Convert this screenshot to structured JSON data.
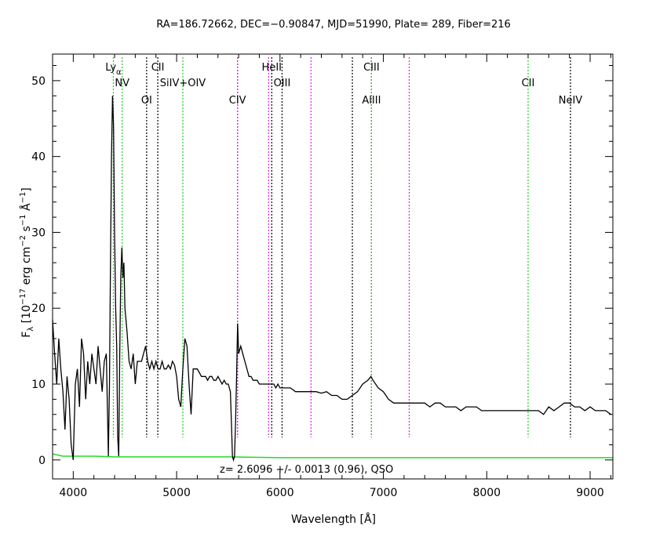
{
  "chart_data": {
    "type": "line",
    "title": "RA=186.72662, DEC=−0.90847, MJD=51990, Plate= 289, Fiber=216",
    "xlabel": "Wavelength [Å]",
    "ylabel": {
      "f": "F",
      "f_sub": "λ",
      "open": " [10",
      "exp1": "−17",
      "mid1": " erg cm",
      "exp2": "−2",
      "mid2": " s",
      "exp3": "−1",
      "mid3": " Å",
      "exp4": "−1",
      "close": "]"
    },
    "xlim": [
      3800,
      9220
    ],
    "ylim": [
      -2.5,
      53.5
    ],
    "xticks": [
      4000,
      5000,
      6000,
      7000,
      8000,
      9000
    ],
    "yticks": [
      0,
      10,
      20,
      30,
      40,
      50
    ],
    "annotation": "z=  2.6096  +/-  0.0013  (0.96),  QSO",
    "colors": {
      "flux": "#000000",
      "error": "#22dd22",
      "green_line": "#22cc22",
      "magenta_line": "#dd22dd",
      "black_line": "#000000"
    },
    "lines": [
      {
        "label": "Ly",
        "sub": "α",
        "x": 4388,
        "color": "green",
        "row": 0
      },
      {
        "label": "NV",
        "x": 4473,
        "color": "green",
        "row": 1
      },
      {
        "label": "OI",
        "x": 4710,
        "color": "black",
        "row": 2
      },
      {
        "label": "CII",
        "x": 4818,
        "color": "black",
        "row": 0
      },
      {
        "label": "SiIV+OIV",
        "x": 5060,
        "color": "green",
        "row": 1
      },
      {
        "label": "CIV",
        "x": 5589,
        "color": "magenta",
        "row": 2
      },
      {
        "label": "HeII",
        "x": 5920,
        "color": "black",
        "row": 0
      },
      {
        "label": "OIII",
        "x": 6020,
        "color": "black",
        "row": 1
      },
      {
        "label": "AlIII",
        "x": 6885,
        "color": "black",
        "row": 2
      },
      {
        "label": "CIII",
        "x": 6885,
        "color": "green",
        "row": 0
      },
      {
        "label": "CII",
        "x": 8400,
        "color": "green",
        "row": 1
      },
      {
        "label": "NeIV",
        "x": 8810,
        "color": "black",
        "row": 2
      }
    ],
    "unlabeled_lines": [
      {
        "x": 5590,
        "color": "magenta"
      },
      {
        "x": 5890,
        "color": "magenta"
      },
      {
        "x": 6300,
        "color": "magenta"
      },
      {
        "x": 6700,
        "color": "black"
      },
      {
        "x": 7250,
        "color": "magenta"
      }
    ],
    "series": [
      {
        "color": "black",
        "points": [
          [
            3800,
            18.5
          ],
          [
            3820,
            14
          ],
          [
            3840,
            10
          ],
          [
            3860,
            16
          ],
          [
            3880,
            12
          ],
          [
            3900,
            9
          ],
          [
            3920,
            4
          ],
          [
            3940,
            11
          ],
          [
            3960,
            8
          ],
          [
            3980,
            2
          ],
          [
            4000,
            0
          ],
          [
            4020,
            10
          ],
          [
            4040,
            12
          ],
          [
            4060,
            7
          ],
          [
            4080,
            16
          ],
          [
            4100,
            14
          ],
          [
            4120,
            8
          ],
          [
            4140,
            13
          ],
          [
            4160,
            10
          ],
          [
            4180,
            14
          ],
          [
            4200,
            12
          ],
          [
            4220,
            10
          ],
          [
            4240,
            15
          ],
          [
            4260,
            12
          ],
          [
            4280,
            9
          ],
          [
            4300,
            13
          ],
          [
            4320,
            14
          ],
          [
            4340,
            0.5
          ],
          [
            4350,
            10
          ],
          [
            4360,
            26
          ],
          [
            4370,
            40
          ],
          [
            4380,
            48
          ],
          [
            4390,
            44
          ],
          [
            4400,
            30
          ],
          [
            4410,
            20
          ],
          [
            4420,
            15
          ],
          [
            4430,
            3
          ],
          [
            4440,
            0.5
          ],
          [
            4450,
            14
          ],
          [
            4460,
            24
          ],
          [
            4470,
            28
          ],
          [
            4480,
            24
          ],
          [
            4490,
            26
          ],
          [
            4500,
            20
          ],
          [
            4520,
            17
          ],
          [
            4540,
            13
          ],
          [
            4560,
            12
          ],
          [
            4580,
            14
          ],
          [
            4600,
            10
          ],
          [
            4620,
            13
          ],
          [
            4640,
            13
          ],
          [
            4660,
            13
          ],
          [
            4680,
            14
          ],
          [
            4700,
            15
          ],
          [
            4720,
            13
          ],
          [
            4740,
            12
          ],
          [
            4760,
            13
          ],
          [
            4780,
            12
          ],
          [
            4800,
            13
          ],
          [
            4820,
            12
          ],
          [
            4840,
            12
          ],
          [
            4860,
            13
          ],
          [
            4880,
            12
          ],
          [
            4900,
            12
          ],
          [
            4920,
            12.5
          ],
          [
            4940,
            12
          ],
          [
            4960,
            13
          ],
          [
            4980,
            12.5
          ],
          [
            5000,
            11
          ],
          [
            5020,
            8
          ],
          [
            5040,
            7
          ],
          [
            5060,
            12
          ],
          [
            5080,
            16
          ],
          [
            5100,
            15
          ],
          [
            5120,
            10
          ],
          [
            5140,
            6
          ],
          [
            5160,
            12
          ],
          [
            5180,
            12
          ],
          [
            5200,
            12
          ],
          [
            5220,
            11.5
          ],
          [
            5240,
            11
          ],
          [
            5260,
            11
          ],
          [
            5280,
            11
          ],
          [
            5300,
            10.5
          ],
          [
            5320,
            11
          ],
          [
            5340,
            11
          ],
          [
            5360,
            10.5
          ],
          [
            5380,
            10.5
          ],
          [
            5400,
            11
          ],
          [
            5420,
            10.5
          ],
          [
            5440,
            10
          ],
          [
            5460,
            10.5
          ],
          [
            5480,
            10
          ],
          [
            5500,
            10
          ],
          [
            5520,
            9
          ],
          [
            5530,
            5
          ],
          [
            5540,
            0.5
          ],
          [
            5550,
            0
          ],
          [
            5560,
            0.5
          ],
          [
            5570,
            5
          ],
          [
            5580,
            11
          ],
          [
            5590,
            18
          ],
          [
            5600,
            14
          ],
          [
            5620,
            15
          ],
          [
            5640,
            14
          ],
          [
            5660,
            13
          ],
          [
            5680,
            12
          ],
          [
            5700,
            11
          ],
          [
            5720,
            11
          ],
          [
            5740,
            10.5
          ],
          [
            5760,
            10.5
          ],
          [
            5780,
            10.5
          ],
          [
            5800,
            10
          ],
          [
            5820,
            10
          ],
          [
            5840,
            10
          ],
          [
            5860,
            10
          ],
          [
            5880,
            10
          ],
          [
            5900,
            10
          ],
          [
            5920,
            10
          ],
          [
            5940,
            10
          ],
          [
            5960,
            9.5
          ],
          [
            5980,
            10
          ],
          [
            6000,
            9.5
          ],
          [
            6050,
            9.5
          ],
          [
            6100,
            9.5
          ],
          [
            6150,
            9
          ],
          [
            6200,
            9
          ],
          [
            6250,
            9
          ],
          [
            6300,
            9
          ],
          [
            6350,
            9
          ],
          [
            6400,
            8.8
          ],
          [
            6450,
            9
          ],
          [
            6500,
            8.5
          ],
          [
            6550,
            8.5
          ],
          [
            6600,
            8
          ],
          [
            6650,
            8
          ],
          [
            6700,
            8.5
          ],
          [
            6750,
            9
          ],
          [
            6800,
            10
          ],
          [
            6850,
            10.5
          ],
          [
            6880,
            11
          ],
          [
            6900,
            10.5
          ],
          [
            6950,
            9.5
          ],
          [
            7000,
            9
          ],
          [
            7050,
            8
          ],
          [
            7100,
            7.5
          ],
          [
            7150,
            7.5
          ],
          [
            7200,
            7.5
          ],
          [
            7250,
            7.5
          ],
          [
            7300,
            7.5
          ],
          [
            7350,
            7.5
          ],
          [
            7400,
            7.5
          ],
          [
            7450,
            7
          ],
          [
            7500,
            7.5
          ],
          [
            7550,
            7.5
          ],
          [
            7600,
            7
          ],
          [
            7650,
            7
          ],
          [
            7700,
            7
          ],
          [
            7750,
            6.5
          ],
          [
            7800,
            7
          ],
          [
            7850,
            7
          ],
          [
            7900,
            7
          ],
          [
            7950,
            6.5
          ],
          [
            8000,
            6.5
          ],
          [
            8050,
            6.5
          ],
          [
            8100,
            6.5
          ],
          [
            8150,
            6.5
          ],
          [
            8200,
            6.5
          ],
          [
            8250,
            6.5
          ],
          [
            8300,
            6.5
          ],
          [
            8350,
            6.5
          ],
          [
            8400,
            6.5
          ],
          [
            8450,
            6.5
          ],
          [
            8500,
            6.5
          ],
          [
            8550,
            6
          ],
          [
            8600,
            7
          ],
          [
            8650,
            6.5
          ],
          [
            8700,
            7
          ],
          [
            8750,
            7.5
          ],
          [
            8800,
            7.5
          ],
          [
            8850,
            7
          ],
          [
            8900,
            7
          ],
          [
            8950,
            6.5
          ],
          [
            9000,
            7
          ],
          [
            9050,
            6.5
          ],
          [
            9100,
            6.5
          ],
          [
            9150,
            6.5
          ],
          [
            9200,
            6
          ]
        ]
      },
      {
        "color": "green",
        "points": [
          [
            3800,
            0.8
          ],
          [
            3900,
            0.5
          ],
          [
            4000,
            0.5
          ],
          [
            4200,
            0.5
          ],
          [
            4400,
            0.4
          ],
          [
            4600,
            0.4
          ],
          [
            5000,
            0.4
          ],
          [
            5500,
            0.4
          ],
          [
            6000,
            0.3
          ],
          [
            6500,
            0.3
          ],
          [
            7000,
            0.3
          ],
          [
            7500,
            0.3
          ],
          [
            8000,
            0.3
          ],
          [
            8500,
            0.3
          ],
          [
            9000,
            0.3
          ],
          [
            9220,
            0.3
          ]
        ]
      }
    ]
  }
}
